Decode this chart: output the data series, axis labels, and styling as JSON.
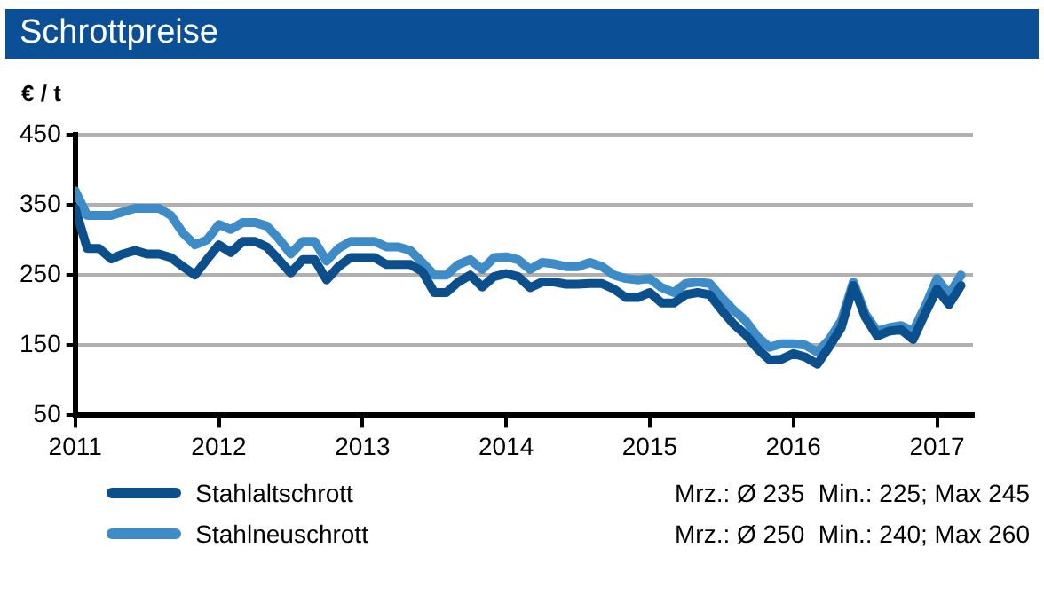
{
  "chart_data": {
    "type": "line",
    "title": "Schrottpreise",
    "ylabel": "€ / t",
    "x": [
      2011.0,
      2011.0833,
      2011.1667,
      2011.25,
      2011.3333,
      2011.4167,
      2011.5,
      2011.5833,
      2011.6667,
      2011.75,
      2011.8333,
      2011.9167,
      2012.0,
      2012.0833,
      2012.1667,
      2012.25,
      2012.3333,
      2012.4167,
      2012.5,
      2012.5833,
      2012.6667,
      2012.75,
      2012.8333,
      2012.9167,
      2013.0,
      2013.0833,
      2013.1667,
      2013.25,
      2013.3333,
      2013.4167,
      2013.5,
      2013.5833,
      2013.6667,
      2013.75,
      2013.8333,
      2013.9167,
      2014.0,
      2014.0833,
      2014.1667,
      2014.25,
      2014.3333,
      2014.4167,
      2014.5,
      2014.5833,
      2014.6667,
      2014.75,
      2014.8333,
      2014.9167,
      2015.0,
      2015.0833,
      2015.1667,
      2015.25,
      2015.3333,
      2015.4167,
      2015.5,
      2015.5833,
      2015.6667,
      2015.75,
      2015.8333,
      2015.9167,
      2016.0,
      2016.0833,
      2016.1667,
      2016.25,
      2016.3333,
      2016.4167,
      2016.5,
      2016.5833,
      2016.6667,
      2016.75,
      2016.8333,
      2016.9167,
      2017.0,
      2017.0833,
      2017.1667
    ],
    "series": [
      {
        "name": "Stahlaltschrott",
        "color": "#0b4f8c",
        "values": [
          345,
          288,
          288,
          273,
          280,
          285,
          280,
          280,
          275,
          262,
          250,
          272,
          293,
          282,
          298,
          298,
          290,
          272,
          253,
          272,
          272,
          243,
          262,
          275,
          275,
          275,
          265,
          265,
          265,
          255,
          225,
          225,
          240,
          250,
          233,
          248,
          252,
          248,
          232,
          240,
          240,
          237,
          237,
          238,
          238,
          230,
          218,
          218,
          225,
          210,
          210,
          222,
          225,
          222,
          200,
          180,
          165,
          145,
          129,
          130,
          138,
          133,
          123,
          148,
          175,
          235,
          190,
          163,
          170,
          172,
          158,
          195,
          230,
          208,
          235
        ]
      },
      {
        "name": "Stahlneuschrott",
        "color": "#3d8bc7",
        "values": [
          370,
          335,
          335,
          335,
          340,
          345,
          345,
          345,
          335,
          310,
          293,
          300,
          322,
          315,
          325,
          325,
          320,
          302,
          280,
          298,
          298,
          270,
          288,
          298,
          298,
          298,
          290,
          290,
          285,
          268,
          250,
          250,
          265,
          272,
          258,
          275,
          276,
          272,
          258,
          268,
          266,
          262,
          262,
          268,
          262,
          250,
          245,
          243,
          245,
          232,
          225,
          238,
          240,
          238,
          218,
          200,
          185,
          162,
          147,
          152,
          152,
          150,
          140,
          158,
          185,
          240,
          195,
          170,
          175,
          178,
          170,
          205,
          245,
          222,
          250
        ]
      }
    ],
    "xlim": [
      2011,
      2017.25
    ],
    "xticks": [
      2011,
      2012,
      2013,
      2014,
      2015,
      2016,
      2017
    ],
    "ylim": [
      50,
      450
    ],
    "yticks": [
      50,
      150,
      250,
      350,
      450
    ],
    "grid": "y",
    "legend": "bottom",
    "marker": "none",
    "line_style": "solid",
    "annotations": [
      "Mrz.: Ø 235  Min.: 225; Max 245",
      "Mrz.: Ø 250  Min.: 240; Max 260"
    ]
  }
}
